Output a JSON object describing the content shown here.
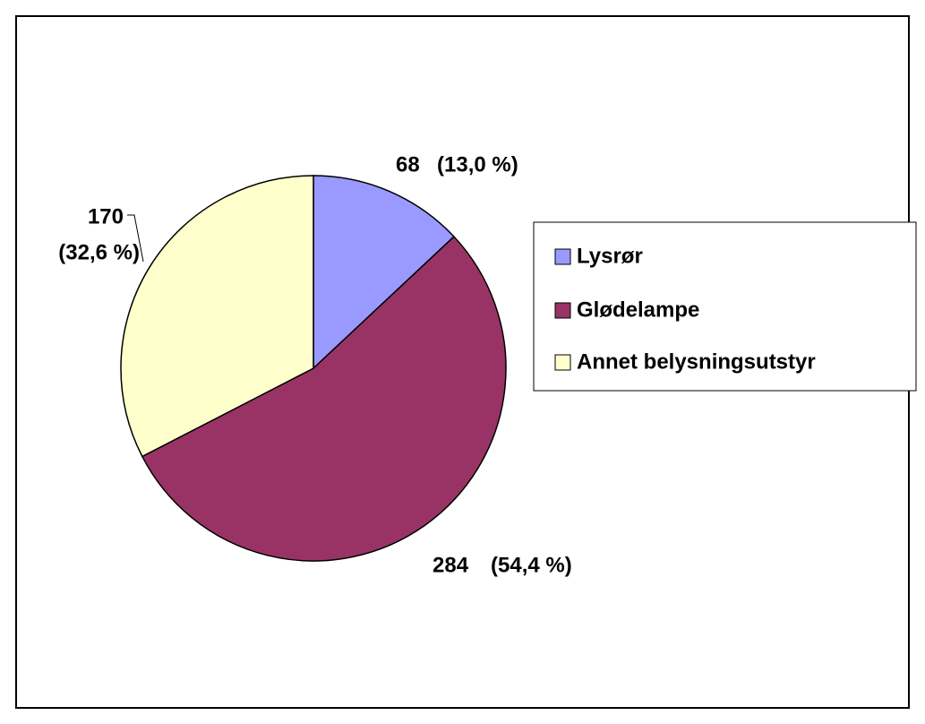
{
  "chart_data": {
    "type": "pie",
    "categories": [
      "Lysrør",
      "Glødelampe",
      "Annet belysningsutstyr"
    ],
    "values": [
      68,
      284,
      170
    ],
    "percents": [
      13.0,
      54.4,
      32.6
    ],
    "percent_labels": [
      "(13,0 %)",
      "(54,4 %)",
      "(32,6 %)"
    ],
    "colors": [
      "#9999ff",
      "#993366",
      "#ffffcc"
    ],
    "legend": "right"
  }
}
